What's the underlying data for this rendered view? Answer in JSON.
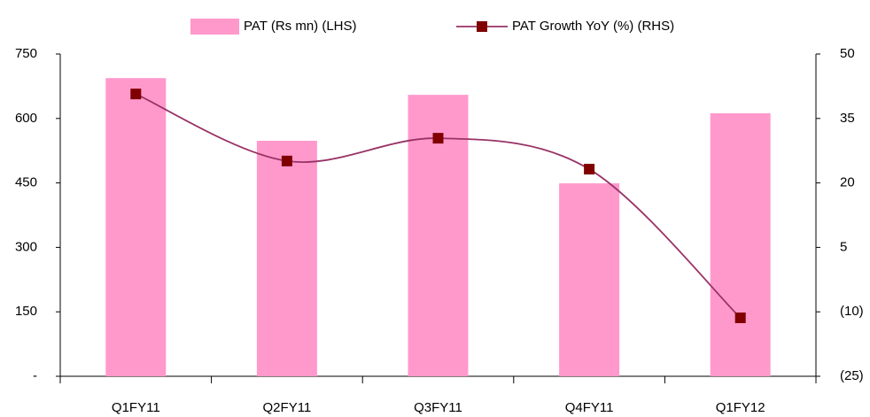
{
  "chart_data": {
    "type": "bar",
    "categories": [
      "Q1FY11",
      "Q2FY11",
      "Q3FY11",
      "Q4FY11",
      "Q1FY12"
    ],
    "series": [
      {
        "name": "PAT (Rs mn) (LHS)",
        "type": "bar",
        "color": "#ff99cc",
        "values": [
          694,
          548,
          655,
          449,
          612
        ]
      },
      {
        "name": "PAT Growth YoY (%) (RHS)",
        "type": "line",
        "axis": "y2",
        "color": "#993366",
        "marker_color": "#800000",
        "values": [
          40.7,
          25.1,
          30.4,
          23.2,
          -11.4
        ]
      }
    ],
    "ylim": [
      0,
      750
    ],
    "yticks": [
      {
        "value": 0,
        "label": "-"
      },
      150,
      300,
      450,
      600,
      750
    ],
    "y2lim": [
      -25,
      50
    ],
    "y2ticks": [
      {
        "value": -25,
        "label": "(25)"
      },
      {
        "value": -10,
        "label": "(10)"
      },
      5,
      20,
      35,
      50
    ],
    "legend": "top"
  }
}
